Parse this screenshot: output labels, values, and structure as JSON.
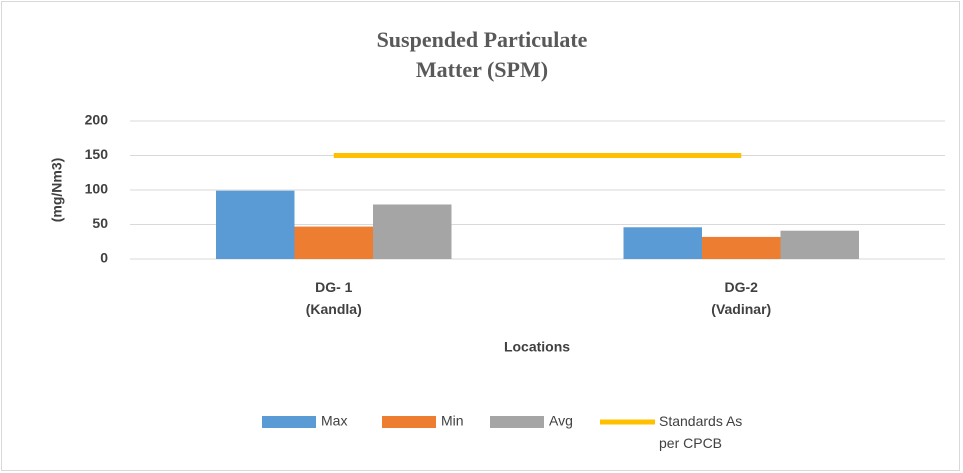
{
  "chart_data": {
    "type": "bar",
    "title": "Suspended Particulate\nMatter (SPM)",
    "x_label": "Locations",
    "y_label": "(mg/Nm3)",
    "categories": [
      "DG- 1\n(Kandla)",
      "DG-2\n(Vadinar)"
    ],
    "series": [
      {
        "name": "Max",
        "color": "#5b9bd5",
        "values": [
          99,
          46
        ]
      },
      {
        "name": "Min",
        "color": "#ed7d31",
        "values": [
          47,
          32
        ]
      },
      {
        "name": "Avg",
        "color": "#a5a5a5",
        "values": [
          79,
          41
        ]
      },
      {
        "name": "Standards As\nper CPCB",
        "color": "#ffc000",
        "type": "line",
        "values": [
          150,
          150
        ]
      }
    ],
    "ylim": [
      0,
      200
    ],
    "yticks": [
      0,
      50,
      100,
      150,
      200
    ],
    "grid": true,
    "legend": "bottom"
  }
}
